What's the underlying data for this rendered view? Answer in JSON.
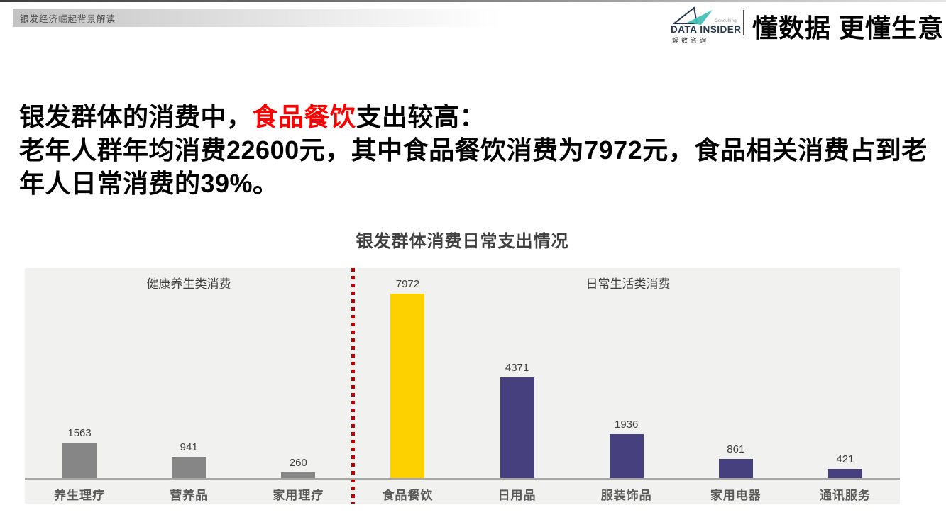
{
  "page": {
    "breadcrumb": "银发经济崛起背景解读",
    "brand": {
      "logo_name": "DATA INSIDER",
      "logo_sub": "Consulting",
      "logo_cn": "解数咨询",
      "slogan": "懂数据 更懂生意",
      "navy": "#26374F",
      "teal": "#3FBFB4"
    },
    "heading": {
      "line1_prefix": "银发群体的消费中，",
      "line1_highlight": "食品餐饮",
      "line1_suffix": "支出较高：",
      "body": "老年人群年均消费22600元，其中食品餐饮消费为7972元，食品相关消费占到老年人日常消费的39%。",
      "highlight_color": "#FF0000"
    }
  },
  "chart_data": {
    "type": "bar",
    "title": "银发群体消费日常支出情况",
    "categories": [
      "养生理疗",
      "营养品",
      "家用理疗",
      "食品餐饮",
      "日用品",
      "服装饰品",
      "家用电器",
      "通讯服务"
    ],
    "values": [
      1563,
      941,
      260,
      7972,
      4371,
      1936,
      861,
      421
    ],
    "bar_colors": [
      "#868686",
      "#868686",
      "#868686",
      "#FDD000",
      "#46417E",
      "#46417E",
      "#46417E",
      "#46417E"
    ],
    "sections": [
      {
        "label": "健康养生类消费",
        "category_indexes": [
          0,
          1,
          2
        ]
      },
      {
        "label": "日常生活类消费",
        "category_indexes": [
          3,
          4,
          5,
          6,
          7
        ]
      }
    ],
    "divider_after_index": 2,
    "divider_color": "#C00000",
    "background": "#F1F1F0",
    "ylim": [
      0,
      8500
    ],
    "grid": false,
    "legend": false,
    "xlabel": "",
    "ylabel": ""
  }
}
